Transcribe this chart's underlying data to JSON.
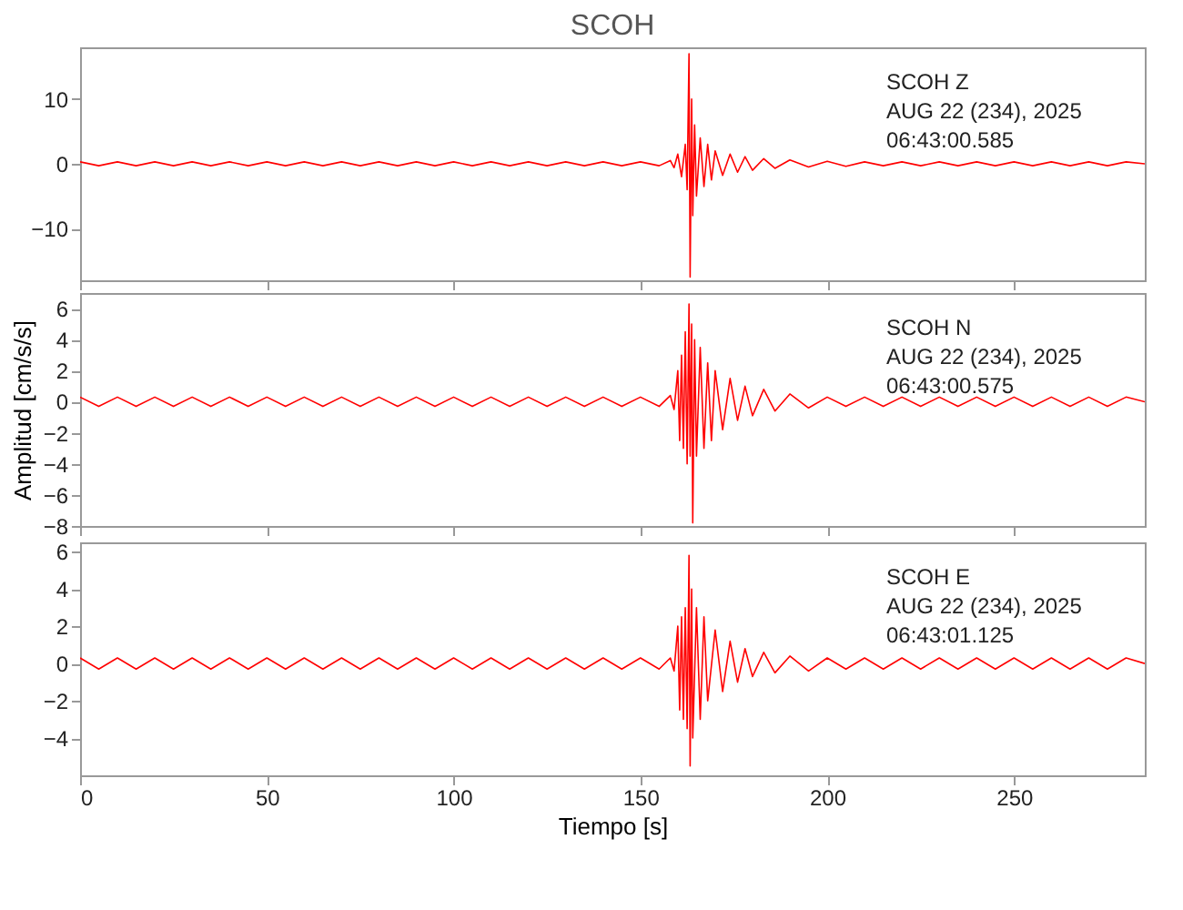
{
  "chart_data": [
    {
      "type": "line",
      "title": "SCOH",
      "xlim": [
        0,
        285
      ],
      "xticks": [
        0,
        50,
        100,
        150,
        200,
        250
      ],
      "ylim": [
        -18,
        18
      ],
      "yticks": [
        -10,
        0,
        10
      ],
      "tick_labels": "y",
      "line_style": "solid",
      "annotations": [
        "SCOH   Z",
        "AUG 22 (234), 2025",
        "06:43:00.585"
      ],
      "series": [
        {
          "color": "#ff0000",
          "x": [
            0,
            5,
            10,
            15,
            20,
            25,
            30,
            35,
            40,
            45,
            50,
            55,
            60,
            65,
            70,
            75,
            80,
            85,
            90,
            95,
            100,
            105,
            110,
            115,
            120,
            125,
            130,
            135,
            140,
            145,
            150,
            155,
            158,
            159,
            160,
            161,
            162,
            162.5,
            163,
            163.3,
            163.7,
            164,
            164.5,
            165,
            166,
            167,
            168,
            169,
            170,
            172,
            174,
            176,
            178,
            180,
            183,
            186,
            190,
            195,
            200,
            205,
            210,
            215,
            220,
            225,
            230,
            235,
            240,
            245,
            250,
            255,
            260,
            265,
            270,
            275,
            280,
            285
          ],
          "values": [
            0.3,
            -0.3,
            0.3,
            -0.3,
            0.3,
            -0.3,
            0.3,
            -0.3,
            0.3,
            -0.3,
            0.3,
            -0.3,
            0.3,
            -0.3,
            0.3,
            -0.3,
            0.3,
            -0.3,
            0.3,
            -0.3,
            0.3,
            -0.3,
            0.3,
            -0.3,
            0.3,
            -0.3,
            0.3,
            -0.3,
            0.3,
            -0.3,
            0.3,
            -0.3,
            0.5,
            -0.6,
            1.5,
            -2,
            3,
            -4,
            17,
            -17.5,
            10,
            -8,
            6,
            -5,
            4,
            -3.5,
            3,
            -2.5,
            2,
            -1.8,
            1.5,
            -1.3,
            1.1,
            -1,
            0.8,
            -0.7,
            0.6,
            -0.5,
            0.4,
            -0.4,
            0.3,
            -0.3,
            0.3,
            -0.3,
            0.3,
            -0.3,
            0.3,
            -0.3,
            0.3,
            -0.3,
            0.3,
            -0.3,
            0.3,
            -0.3,
            0.3,
            0
          ]
        }
      ]
    },
    {
      "type": "line",
      "ylabel": "Amplitud [cm/s/s]",
      "xlim": [
        0,
        285
      ],
      "xticks": [
        0,
        50,
        100,
        150,
        200,
        250
      ],
      "ylim": [
        -8,
        7
      ],
      "yticks": [
        -8,
        -6,
        -4,
        -2,
        0,
        2,
        4,
        6
      ],
      "tick_labels": "y",
      "line_style": "solid",
      "annotations": [
        "SCOH   N",
        "AUG 22 (234), 2025",
        "06:43:00.575"
      ],
      "series": [
        {
          "color": "#ff0000",
          "x": [
            0,
            5,
            10,
            15,
            20,
            25,
            30,
            35,
            40,
            45,
            50,
            55,
            60,
            65,
            70,
            75,
            80,
            85,
            90,
            95,
            100,
            105,
            110,
            115,
            120,
            125,
            130,
            135,
            140,
            145,
            150,
            155,
            158,
            159,
            160,
            160.5,
            161,
            161.5,
            162,
            162.5,
            163,
            163.3,
            163.7,
            164,
            164.5,
            165,
            166,
            167,
            168,
            169,
            170,
            172,
            174,
            176,
            178,
            180,
            183,
            186,
            190,
            195,
            200,
            205,
            210,
            215,
            220,
            225,
            230,
            235,
            240,
            245,
            250,
            255,
            260,
            265,
            270,
            275,
            280,
            285
          ],
          "values": [
            0.3,
            -0.3,
            0.3,
            -0.3,
            0.3,
            -0.3,
            0.3,
            -0.3,
            0.3,
            -0.3,
            0.3,
            -0.3,
            0.3,
            -0.3,
            0.3,
            -0.3,
            0.3,
            -0.3,
            0.3,
            -0.3,
            0.3,
            -0.3,
            0.3,
            -0.3,
            0.3,
            -0.3,
            0.3,
            -0.3,
            0.3,
            -0.3,
            0.3,
            -0.3,
            0.4,
            -0.5,
            2,
            -2.5,
            3,
            -3,
            4.5,
            -4,
            6.3,
            -3.5,
            5,
            -7.8,
            4,
            -3.5,
            3.5,
            -3,
            2.5,
            -2.5,
            2,
            -1.8,
            1.5,
            -1.2,
            1,
            -0.9,
            0.8,
            -0.6,
            0.5,
            -0.4,
            0.3,
            -0.3,
            0.3,
            -0.3,
            0.3,
            -0.3,
            0.3,
            -0.3,
            0.3,
            -0.3,
            0.3,
            -0.3,
            0.3,
            -0.3,
            0.3,
            -0.3,
            0.3,
            0
          ]
        }
      ]
    },
    {
      "type": "line",
      "xlabel": "Tiempo [s]",
      "xlim": [
        0,
        285
      ],
      "xticks": [
        0,
        50,
        100,
        150,
        200,
        250
      ],
      "ylim": [
        -6,
        6.5
      ],
      "yticks": [
        -4,
        -2,
        0,
        2,
        4,
        6
      ],
      "line_style": "solid",
      "annotations": [
        "SCOH   E",
        "AUG 22 (234), 2025",
        "06:43:01.125"
      ],
      "series": [
        {
          "color": "#ff0000",
          "x": [
            0,
            5,
            10,
            15,
            20,
            25,
            30,
            35,
            40,
            45,
            50,
            55,
            60,
            65,
            70,
            75,
            80,
            85,
            90,
            95,
            100,
            105,
            110,
            115,
            120,
            125,
            130,
            135,
            140,
            145,
            150,
            155,
            158,
            159,
            160,
            160.5,
            161,
            161.5,
            162,
            162.5,
            163,
            163.3,
            163.7,
            164,
            165,
            166,
            167,
            168,
            170,
            172,
            174,
            176,
            178,
            180,
            183,
            186,
            190,
            195,
            200,
            205,
            210,
            215,
            220,
            225,
            230,
            235,
            240,
            245,
            250,
            255,
            260,
            265,
            270,
            275,
            280,
            285
          ],
          "values": [
            0.3,
            -0.3,
            0.3,
            -0.3,
            0.3,
            -0.3,
            0.3,
            -0.3,
            0.3,
            -0.3,
            0.3,
            -0.3,
            0.3,
            -0.3,
            0.3,
            -0.3,
            0.3,
            -0.3,
            0.3,
            -0.3,
            0.3,
            -0.3,
            0.3,
            -0.3,
            0.3,
            -0.3,
            0.3,
            -0.3,
            0.3,
            -0.3,
            0.3,
            -0.3,
            0.3,
            -0.4,
            2,
            -2.5,
            2.5,
            -3,
            3,
            -3.5,
            5.8,
            -5.5,
            4,
            -4,
            3,
            -3,
            2.5,
            -2,
            1.8,
            -1.5,
            1.2,
            -1,
            0.8,
            -0.7,
            0.6,
            -0.5,
            0.4,
            -0.4,
            0.3,
            -0.3,
            0.3,
            -0.3,
            0.3,
            -0.3,
            0.3,
            -0.3,
            0.3,
            -0.3,
            0.3,
            -0.3,
            0.3,
            -0.3,
            0.3,
            -0.3,
            0.3,
            0
          ]
        }
      ]
    }
  ]
}
